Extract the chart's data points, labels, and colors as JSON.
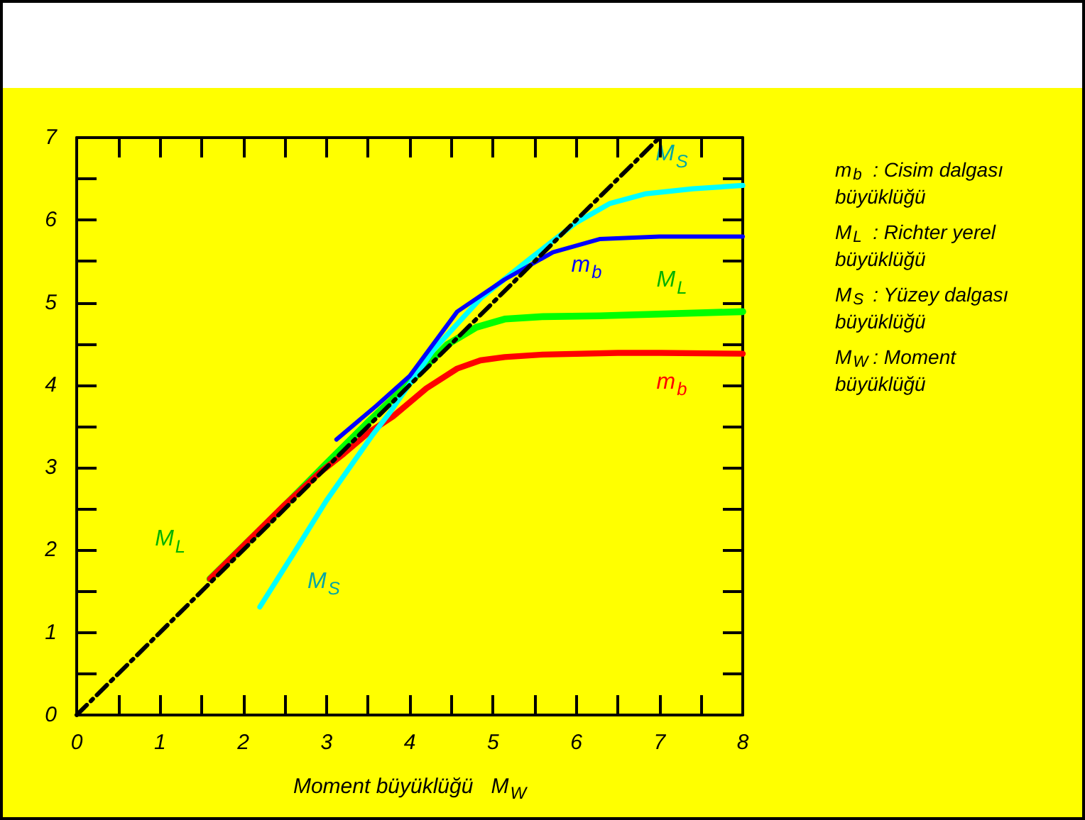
{
  "chart_data": {
    "type": "line",
    "xlabel": "Moment büyüklüğü   M$_{W}$",
    "xlim": [
      0,
      8
    ],
    "xticks": [
      0,
      {
        "value": 0.5,
        "label": null
      },
      1,
      {
        "value": 1.5,
        "label": null
      },
      2,
      {
        "value": 2.5,
        "label": null
      },
      3,
      {
        "value": 3.5,
        "label": null
      },
      4,
      {
        "value": 4.5,
        "label": null
      },
      5,
      {
        "value": 5.5,
        "label": null
      },
      6,
      {
        "value": 6.5,
        "label": null
      },
      7,
      {
        "value": 7.5,
        "label": null
      },
      8
    ],
    "ylim": [
      0,
      7
    ],
    "yticks": [
      0,
      {
        "value": 0.5,
        "label": null
      },
      1,
      {
        "value": 1.5,
        "label": null
      },
      2,
      {
        "value": 2.5,
        "label": null
      },
      3,
      {
        "value": 3.5,
        "label": null
      },
      4,
      {
        "value": 4.5,
        "label": null
      },
      5,
      {
        "value": 5.5,
        "label": null
      },
      6,
      {
        "value": 6.5,
        "label": null
      },
      7
    ],
    "grid": false,
    "legend": false,
    "series": [
      {
        "color": "#000000",
        "line_style": "dashed",
        "x": [
          0,
          7
        ],
        "values": [
          0,
          7
        ]
      },
      {
        "name": "M$_{L}$",
        "color": "#00ff00",
        "x": [
          1.6,
          2.47,
          3.0,
          3.5,
          4.0,
          4.45,
          4.8,
          5.14,
          5.6,
          6.28,
          8.0
        ],
        "values": [
          1.65,
          2.51,
          3.05,
          3.55,
          4.03,
          4.49,
          4.7,
          4.8,
          4.83,
          4.84,
          4.89
        ]
      },
      {
        "name": "m$_{b}$",
        "color": "#ff0000",
        "x": [
          1.6,
          2.0,
          2.5,
          2.92,
          3.21,
          3.5,
          3.8,
          4.2,
          4.57,
          4.85,
          5.14,
          5.6,
          6.5,
          7.0,
          8.0
        ],
        "values": [
          1.65,
          2.05,
          2.55,
          2.94,
          3.17,
          3.42,
          3.62,
          3.96,
          4.2,
          4.3,
          4.34,
          4.37,
          4.39,
          4.39,
          4.38
        ]
      },
      {
        "name": "M$_{S}$",
        "color": "#00ffff",
        "x": [
          2.2,
          2.6,
          3.0,
          3.55,
          3.77,
          4.28,
          4.86,
          5.43,
          6.0,
          6.4,
          6.84,
          7.4,
          8.0
        ],
        "values": [
          1.31,
          1.95,
          2.6,
          3.39,
          3.68,
          4.42,
          5.06,
          5.52,
          5.97,
          6.2,
          6.32,
          6.38,
          6.42
        ]
      },
      {
        "name": "m$_{b}$",
        "color": "#0000ff",
        "x": [
          3.12,
          3.6,
          4.0,
          4.57,
          5.14,
          5.72,
          6.28,
          7.0,
          7.4,
          8.0
        ],
        "values": [
          3.34,
          3.75,
          4.11,
          4.89,
          5.28,
          5.61,
          5.77,
          5.8,
          5.8,
          5.8
        ]
      }
    ],
    "annotations": [
      {
        "text": "M$_{L}$",
        "x": 1.6,
        "y": 1.65
      },
      {
        "text": "M$_{S}$",
        "x": 2.2,
        "y": 1.31
      },
      "m$_{b}$  : Cisim dalgası büyüklüğü",
      "M$_{L}$  : Richter yerel büyüklüğü",
      "M$_{S}$  : Yüzey dalgası büyüklüğü",
      "M$_{W}$  : Moment büyüklüğü"
    ]
  }
}
